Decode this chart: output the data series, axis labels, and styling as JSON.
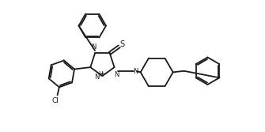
{
  "bg_color": "#ffffff",
  "line_color": "#1a1a1a",
  "lw": 1.3,
  "figsize": [
    3.35,
    1.67
  ],
  "dpi": 100,
  "xlim": [
    0,
    10
  ],
  "ylim": [
    0,
    5
  ]
}
